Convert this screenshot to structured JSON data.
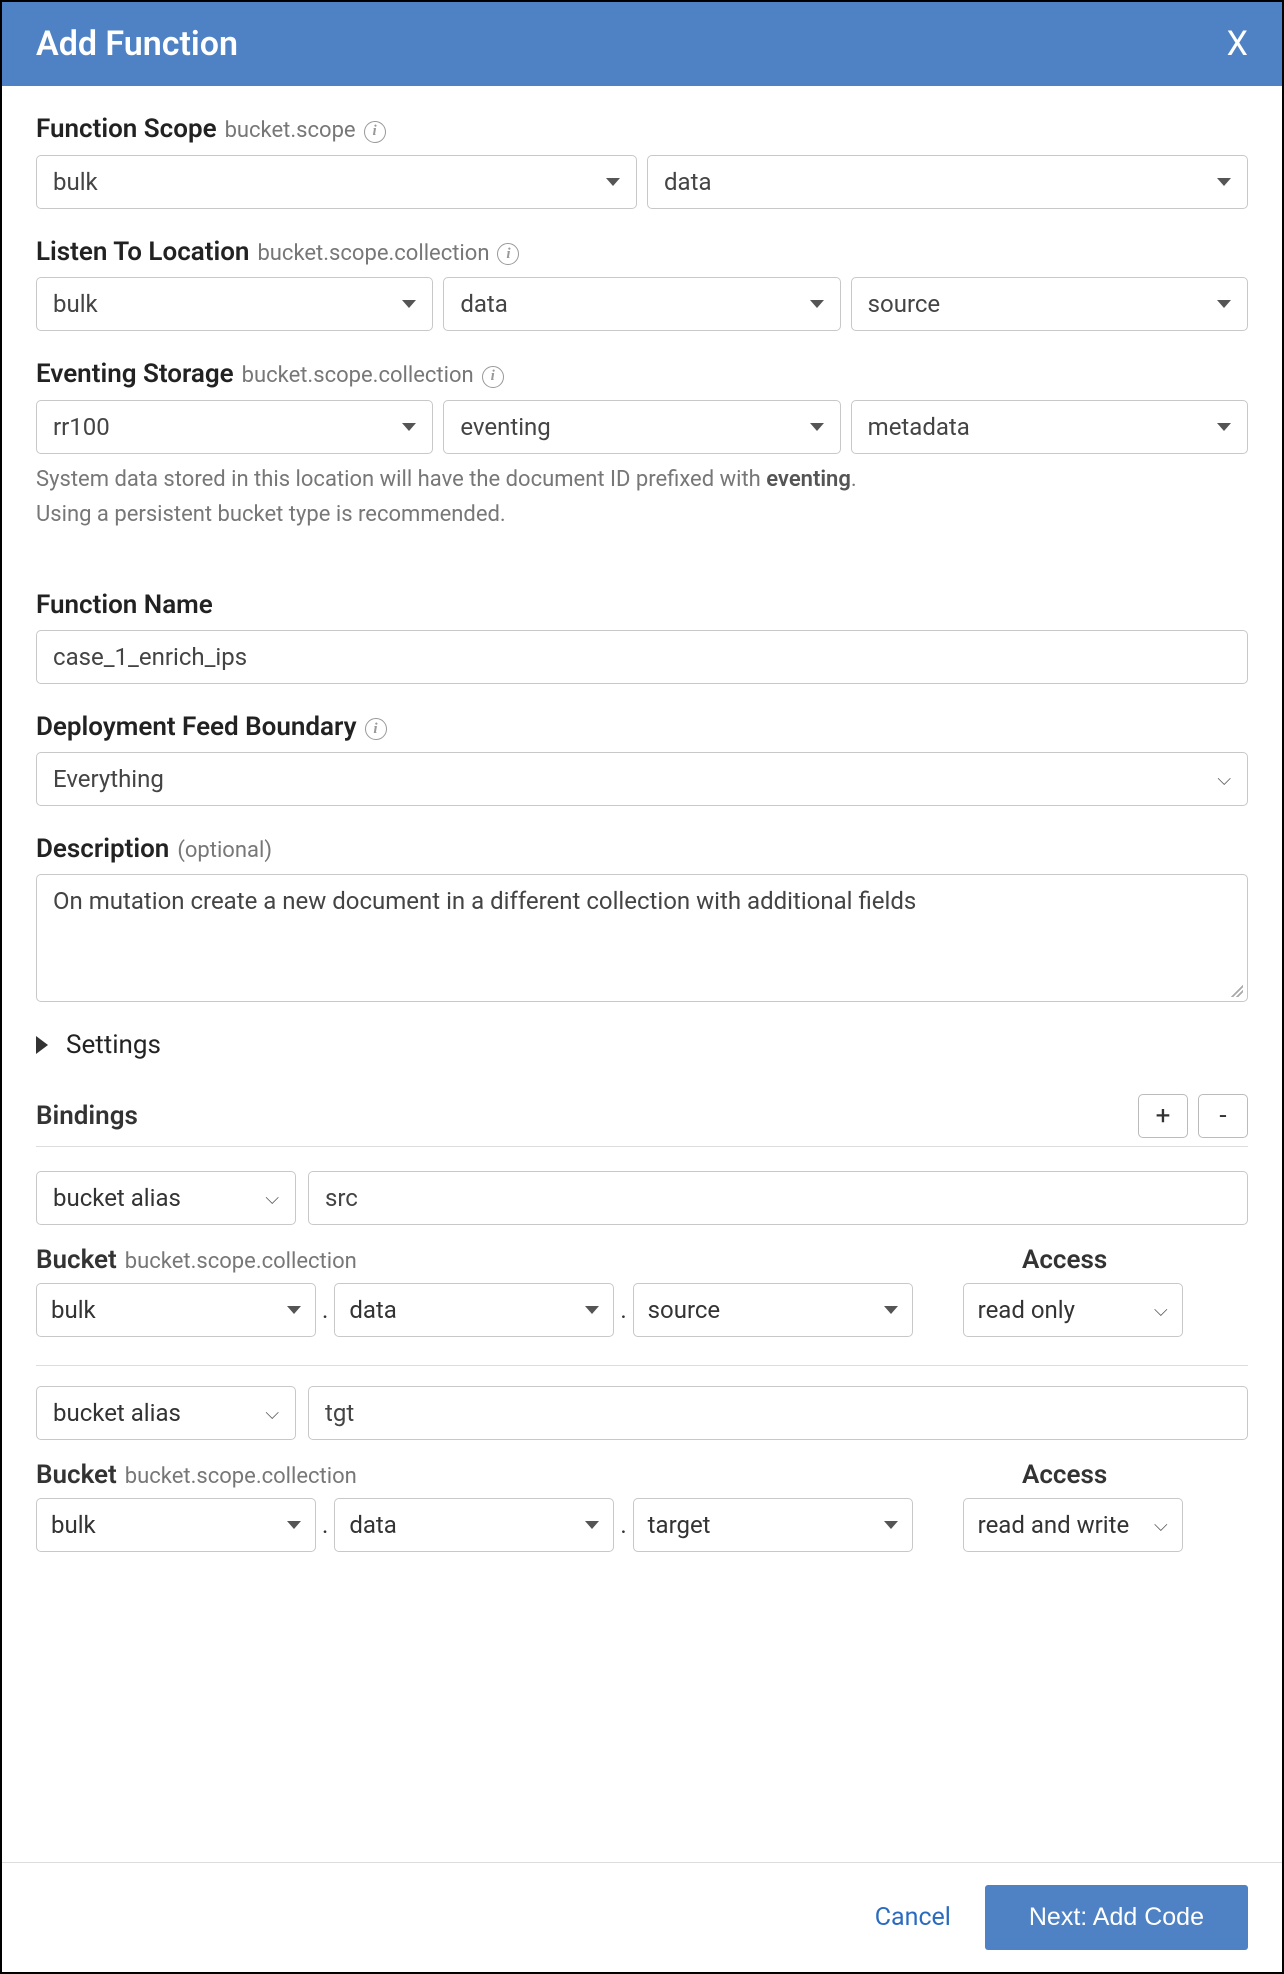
{
  "colors": {
    "header_bg": "#4f82c4",
    "header_text": "#ffffff",
    "border": "#c8c8c8",
    "text": "#333333",
    "muted": "#777777",
    "link": "#2a6bbf"
  },
  "header": {
    "title": "Add Function",
    "close": "X"
  },
  "functionScope": {
    "label": "Function Scope",
    "sublabel": "bucket.scope",
    "bucket": "bulk",
    "scope": "data"
  },
  "listenTo": {
    "label": "Listen To Location",
    "sublabel": "bucket.scope.collection",
    "bucket": "bulk",
    "scope": "data",
    "collection": "source"
  },
  "eventingStorage": {
    "label": "Eventing Storage",
    "sublabel": "bucket.scope.collection",
    "bucket": "rr100",
    "scope": "eventing",
    "collection": "metadata",
    "helper_prefix": "System data stored in this location will have the document ID prefixed with ",
    "helper_bold": "eventing",
    "helper_suffix": ".",
    "helper2": "Using a persistent bucket type is recommended."
  },
  "functionName": {
    "label": "Function Name",
    "value": "case_1_enrich_ips"
  },
  "feedBoundary": {
    "label": "Deployment Feed Boundary",
    "value": "Everything"
  },
  "description": {
    "label": "Description",
    "optional": "(optional)",
    "value": "On mutation create a new document in a different collection with additional fields"
  },
  "settings": {
    "label": "Settings"
  },
  "bindings": {
    "label": "Bindings",
    "plus": "+",
    "minus": "-",
    "bucketLabel": "Bucket",
    "bucketSub": "bucket.scope.collection",
    "accessLabel": "Access",
    "items": [
      {
        "type": "bucket alias",
        "alias": "src",
        "bucket": "bulk",
        "scope": "data",
        "collection": "source",
        "access": "read only"
      },
      {
        "type": "bucket alias",
        "alias": "tgt",
        "bucket": "bulk",
        "scope": "data",
        "collection": "target",
        "access": "read and write"
      }
    ]
  },
  "footer": {
    "cancel": "Cancel",
    "next": "Next: Add Code"
  }
}
